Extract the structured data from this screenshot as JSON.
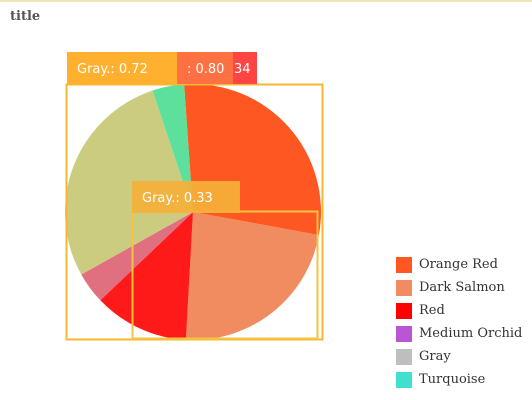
{
  "title": "title",
  "chart_data": {
    "type": "pie",
    "title": "title",
    "slices": [
      {
        "label": "Orange Red",
        "value": 29,
        "color": "#ff5722"
      },
      {
        "label": "Dark Salmon",
        "value": 23,
        "color": "#f08c5f"
      },
      {
        "label": "Red",
        "value": 12,
        "color": "#ff1a1a"
      },
      {
        "label": "Medium Orchid",
        "value": 4,
        "color": "#e07080"
      },
      {
        "label": "Gray",
        "value": 28,
        "color": "#cccc80"
      },
      {
        "label": "Turquoise",
        "value": 4,
        "color": "#5ce09c"
      }
    ],
    "legend_entries": [
      {
        "label": "Orange Red",
        "color": "#ff5722"
      },
      {
        "label": "Dark Salmon",
        "color": "#f08c5f"
      },
      {
        "label": "Red",
        "color": "#ff0000"
      },
      {
        "label": "Medium Orchid",
        "color": "#ba55d3"
      },
      {
        "label": "Gray",
        "color": "#bebebe"
      },
      {
        "label": "Turquoise",
        "color": "#40e0d0"
      }
    ],
    "annotations": [
      {
        "text": "Gray.: 0.72",
        "color": "#ffb02e"
      },
      {
        "text": ": 0.80",
        "color": "#ff7043"
      },
      {
        "text": "34",
        "color": "#ff4444"
      },
      {
        "text": "Gray.: 0.33",
        "color": "#f5b03a"
      }
    ],
    "legend_position": "right"
  }
}
